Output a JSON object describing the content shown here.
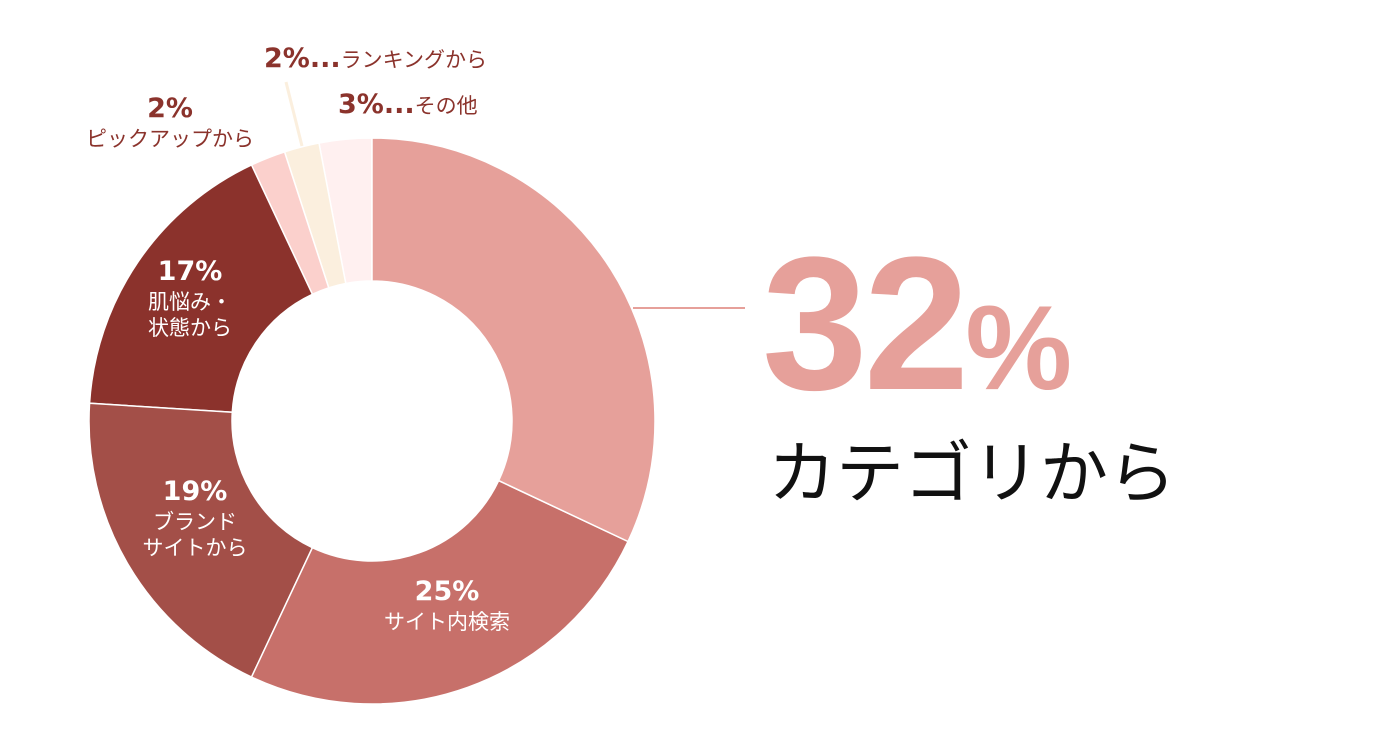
{
  "chart_data": {
    "type": "pie",
    "donut": true,
    "slices": [
      {
        "label": "カテゴリから",
        "value": 32,
        "color": "#e6a09a"
      },
      {
        "label": "サイト内検索",
        "value": 25,
        "color": "#c7706a"
      },
      {
        "label": "ブランドサイトから",
        "value": 19,
        "color": "#a34f48"
      },
      {
        "label": "肌悩み・状態から",
        "value": 17,
        "color": "#8b322c"
      },
      {
        "label": "ピックアップから",
        "value": 2,
        "color": "#fbd0cc"
      },
      {
        "label": "ランキングから",
        "value": 2,
        "color": "#fbefde"
      },
      {
        "label": "その他",
        "value": 3,
        "color": "#fff0f0"
      }
    ],
    "labels": {
      "s25": {
        "pct": "25%",
        "text": "サイト内検索"
      },
      "s19": {
        "pct": "19%",
        "l1": "ブランド",
        "l2": "サイトから"
      },
      "s17": {
        "pct": "17%",
        "l1": "肌悩み・",
        "l2": "状態から"
      },
      "pickup": {
        "pct": "2%",
        "text": "ピックアップから"
      },
      "ranking": {
        "pct": "2%...",
        "text": "ランキングから"
      },
      "other": {
        "pct": "3%...",
        "text": "その他"
      }
    },
    "highlight": {
      "number": "32",
      "unit": "%",
      "text": "カテゴリから"
    }
  }
}
